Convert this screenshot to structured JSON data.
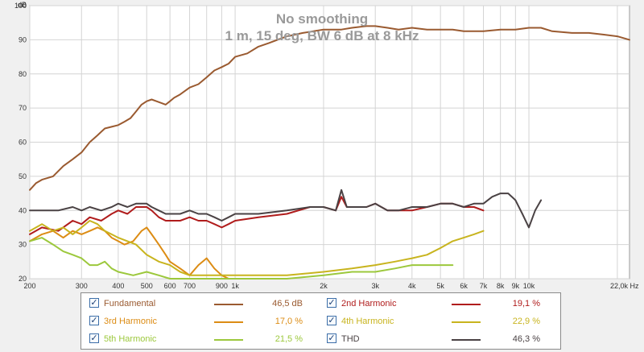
{
  "chart_data": {
    "type": "line",
    "title": "No smoothing",
    "subtitle": "1 m, 15 deg, BW 6 dB at 8 kHz",
    "ylabel": "dB",
    "xunit": "Hz",
    "xscale": "log",
    "xlim": [
      200,
      22000
    ],
    "ylim": [
      20,
      100
    ],
    "grid": true,
    "y_ticks": [
      20,
      30,
      40,
      50,
      60,
      70,
      80,
      90,
      100
    ],
    "x_tick_labels": [
      {
        "x": 200,
        "label": "200"
      },
      {
        "x": 300,
        "label": "300"
      },
      {
        "x": 400,
        "label": "400"
      },
      {
        "x": 500,
        "label": "500"
      },
      {
        "x": 600,
        "label": "600"
      },
      {
        "x": 700,
        "label": "700"
      },
      {
        "x": 900,
        "label": "900"
      },
      {
        "x": 1000,
        "label": "1k"
      },
      {
        "x": 2000,
        "label": "2k"
      },
      {
        "x": 3000,
        "label": "3k"
      },
      {
        "x": 4000,
        "label": "4k"
      },
      {
        "x": 5000,
        "label": "5k"
      },
      {
        "x": 6000,
        "label": "6k"
      },
      {
        "x": 7000,
        "label": "7k"
      },
      {
        "x": 8000,
        "label": "8k"
      },
      {
        "x": 9000,
        "label": "9k"
      },
      {
        "x": 10000,
        "label": "10k"
      },
      {
        "x": 22000,
        "label": "22,0k Hz"
      }
    ],
    "series": [
      {
        "name": "Fundamental",
        "color": "#9a5a30",
        "value": "46,5 dB",
        "x": [
          200,
          210,
          220,
          240,
          260,
          280,
          300,
          320,
          340,
          360,
          380,
          400,
          420,
          440,
          460,
          480,
          500,
          520,
          540,
          560,
          580,
          600,
          620,
          650,
          700,
          750,
          800,
          850,
          900,
          950,
          1000,
          1100,
          1200,
          1300,
          1500,
          1700,
          2000,
          2300,
          2500,
          2800,
          3000,
          3300,
          3600,
          4000,
          4500,
          5000,
          5500,
          6000,
          7000,
          8000,
          9000,
          10000,
          11000,
          12000,
          14000,
          16000,
          18000,
          20000,
          22000
        ],
        "values": [
          46,
          48,
          49,
          50,
          53,
          55,
          57,
          60,
          62,
          64,
          64.5,
          65,
          66,
          67,
          69,
          71,
          72,
          72.5,
          72,
          71.5,
          71,
          72,
          73,
          74,
          76,
          77,
          79,
          81,
          82,
          83,
          85,
          86,
          88,
          89,
          91,
          92,
          93,
          93,
          93.5,
          94,
          94,
          93.5,
          93,
          93.5,
          93,
          93,
          93,
          92.5,
          92.5,
          93,
          93,
          93.5,
          93.5,
          92.5,
          92,
          92,
          91.5,
          91,
          90
        ]
      },
      {
        "name": "2nd Harmonic",
        "color": "#b01c1c",
        "value": "19,1 %",
        "x": [
          200,
          220,
          250,
          280,
          300,
          320,
          350,
          380,
          400,
          430,
          460,
          500,
          520,
          550,
          580,
          600,
          650,
          700,
          750,
          800,
          850,
          900,
          950,
          1000,
          1200,
          1500,
          1800,
          2000,
          2200,
          2300,
          2400,
          2600,
          2800,
          3000,
          3300,
          3600,
          4000,
          4500,
          5000,
          5500,
          6000,
          6500,
          7000
        ],
        "values": [
          33,
          35,
          34,
          37,
          36,
          38,
          37,
          39,
          40,
          39,
          41,
          41,
          40,
          38,
          37,
          37,
          37,
          38,
          37,
          37,
          36,
          35,
          36,
          37,
          38,
          39,
          41,
          41,
          40,
          44,
          41,
          41,
          41,
          42,
          40,
          40,
          40,
          41,
          42,
          42,
          41,
          41,
          40
        ]
      },
      {
        "name": "3rd Harmonic",
        "color": "#dc8c14",
        "value": "17,0 %",
        "x": [
          200,
          220,
          240,
          260,
          280,
          300,
          320,
          340,
          360,
          380,
          400,
          420,
          450,
          480,
          500,
          520,
          550,
          580,
          600,
          650,
          700,
          750,
          800,
          850,
          900,
          950,
          1000,
          1100
        ],
        "values": [
          31,
          33,
          34,
          32,
          34,
          33,
          34,
          35,
          34,
          32,
          31,
          30,
          31,
          34,
          35,
          33,
          30,
          27,
          25,
          23,
          21,
          24,
          26,
          23,
          21,
          20,
          20,
          20
        ]
      },
      {
        "name": "4th Harmonic",
        "color": "#c8b41e",
        "value": "22,9 %",
        "x": [
          200,
          220,
          240,
          260,
          280,
          300,
          320,
          340,
          360,
          380,
          400,
          430,
          460,
          500,
          550,
          600,
          650,
          700,
          1500,
          2000,
          2500,
          3000,
          3500,
          4000,
          4500,
          5000,
          5500,
          6000,
          6500,
          7000
        ],
        "values": [
          34,
          36,
          34,
          35,
          33,
          35,
          37,
          36,
          34,
          33,
          32,
          31,
          30,
          27,
          25,
          24,
          22,
          21,
          21,
          22,
          23,
          24,
          25,
          26,
          27,
          29,
          31,
          32,
          33,
          34
        ]
      },
      {
        "name": "5th Harmonic",
        "color": "#9cc83c",
        "value": "21,5 %",
        "x": [
          200,
          220,
          240,
          260,
          280,
          300,
          320,
          340,
          360,
          380,
          400,
          450,
          500,
          550,
          600,
          700,
          800,
          1500,
          2000,
          2500,
          3000,
          3500,
          4000,
          4500,
          5000,
          5500
        ],
        "values": [
          31,
          32,
          30,
          28,
          27,
          26,
          24,
          24,
          25,
          23,
          22,
          21,
          22,
          21,
          20,
          20,
          20,
          20,
          21,
          22,
          22,
          23,
          24,
          24,
          24,
          24
        ]
      },
      {
        "name": "THD",
        "color": "#4a4244",
        "value": "46,3 %",
        "x": [
          200,
          220,
          250,
          280,
          300,
          320,
          350,
          380,
          400,
          430,
          460,
          500,
          520,
          550,
          580,
          600,
          650,
          700,
          750,
          800,
          850,
          900,
          950,
          1000,
          1200,
          1500,
          1800,
          2000,
          2200,
          2300,
          2400,
          2600,
          2800,
          3000,
          3300,
          3600,
          4000,
          4500,
          5000,
          5500,
          6000,
          6500,
          7000,
          7500,
          8000,
          8500,
          9000,
          9500,
          10000,
          10500,
          11000
        ],
        "values": [
          40,
          40,
          40,
          41,
          40,
          41,
          40,
          41,
          42,
          41,
          42,
          42,
          41,
          40,
          39,
          39,
          39,
          40,
          39,
          39,
          38,
          37,
          38,
          39,
          39,
          40,
          41,
          41,
          40,
          46,
          41,
          41,
          41,
          42,
          40,
          40,
          41,
          41,
          42,
          42,
          41,
          42,
          42,
          44,
          45,
          45,
          43,
          39,
          35,
          40,
          43
        ]
      }
    ]
  },
  "legend": {
    "items": [
      {
        "label": "Fundamental",
        "value": "46,5 dB",
        "color": "#9a5a30",
        "checked": "✓"
      },
      {
        "label": "2nd Harmonic",
        "value": "19,1 %",
        "color": "#b01c1c",
        "checked": "✓"
      },
      {
        "label": "3rd Harmonic",
        "value": "17,0 %",
        "color": "#dc8c14",
        "checked": "✓"
      },
      {
        "label": "4th Harmonic",
        "value": "22,9 %",
        "color": "#c8b41e",
        "checked": "✓"
      },
      {
        "label": "5th Harmonic",
        "value": "21,5 %",
        "color": "#9cc83c",
        "checked": "✓"
      },
      {
        "label": "THD",
        "value": "46,3 %",
        "color": "#4a4244",
        "checked": "✓"
      }
    ]
  }
}
